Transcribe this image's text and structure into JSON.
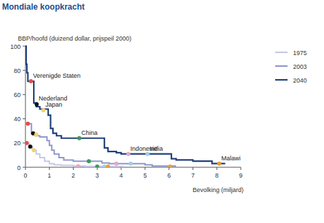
{
  "chart_data": {
    "type": "line",
    "line_style": "step",
    "title": "Mondiale koopkracht",
    "y_label": "BBP/hoofd (duizend dollar, prijspeil 2000)",
    "x_label": "Bevolking (miljard)",
    "xlim": [
      0,
      9
    ],
    "xticks": [
      0,
      1,
      2,
      3,
      4,
      5,
      6,
      7,
      8,
      9
    ],
    "ylim": [
      0,
      100
    ],
    "yticks": [
      0,
      20,
      40,
      60,
      80,
      100
    ],
    "grid": false,
    "legend": "right",
    "series": [
      {
        "name": "1975",
        "color": "#c6c8e8",
        "x": [
          0,
          0.15,
          0.3,
          0.45,
          0.6,
          0.8,
          1.0,
          1.2,
          1.5,
          2.0,
          2.5,
          4.1
        ],
        "values": [
          20,
          17,
          14,
          11,
          8,
          5,
          3,
          2,
          1.5,
          1,
          0.7,
          0.7
        ]
      },
      {
        "name": "2003",
        "color": "#8d97c9",
        "x": [
          0,
          0.25,
          0.4,
          0.6,
          0.9,
          1.0,
          1.1,
          1.2,
          1.4,
          1.6,
          2.0,
          3.2,
          3.5,
          5.0,
          5.3,
          6.3
        ],
        "values": [
          36,
          28,
          26,
          25,
          22,
          18,
          14,
          11,
          8,
          6,
          5,
          3.5,
          3,
          2,
          1,
          1
        ]
      },
      {
        "name": "2040",
        "color": "#1e3f78",
        "x": [
          0,
          0.03,
          0.06,
          0.1,
          0.35,
          0.45,
          0.6,
          0.95,
          1.05,
          1.15,
          1.3,
          1.5,
          3.3,
          3.45,
          3.8,
          4.0,
          6.1,
          6.3,
          7.0,
          7.8,
          8.35
        ],
        "values": [
          100,
          85,
          78,
          71,
          53,
          50,
          48,
          43,
          32,
          28,
          26,
          24,
          16,
          13,
          12,
          11,
          7,
          6,
          5,
          3,
          3
        ]
      }
    ],
    "countries": [
      {
        "name": "Verenigde Staten",
        "color": "#e0504a",
        "x": [
          0.05,
          0.1,
          0.23
        ],
        "values": [
          20,
          36,
          71
        ]
      },
      {
        "name": "Nederland",
        "color": "#111111",
        "x": [
          0.2,
          0.32,
          0.47
        ],
        "values": [
          17,
          28,
          52
        ]
      },
      {
        "name": "Japan",
        "color": "#f2d36a",
        "x": [
          0.35,
          0.45,
          0.75
        ],
        "values": [
          14,
          27,
          47
        ]
      },
      {
        "name": "China",
        "color": "#3a9a5a",
        "x": [
          3.0,
          2.65,
          2.25
        ],
        "values": [
          0.5,
          5,
          24
        ]
      },
      {
        "name": "Indonesië",
        "color": "#e6a8c8",
        "x": [
          2.2,
          3.8,
          4.3
        ],
        "values": [
          0.8,
          3,
          11
        ]
      },
      {
        "name": "India",
        "color": "#a6cde6",
        "x": [
          3.3,
          4.4,
          5.1
        ],
        "values": [
          0.5,
          3,
          11
        ]
      },
      {
        "name": "Malawi",
        "color": "#e4a236",
        "x": [
          3.45,
          6.05,
          8.1
        ],
        "values": [
          0.5,
          0.5,
          3
        ]
      }
    ]
  }
}
